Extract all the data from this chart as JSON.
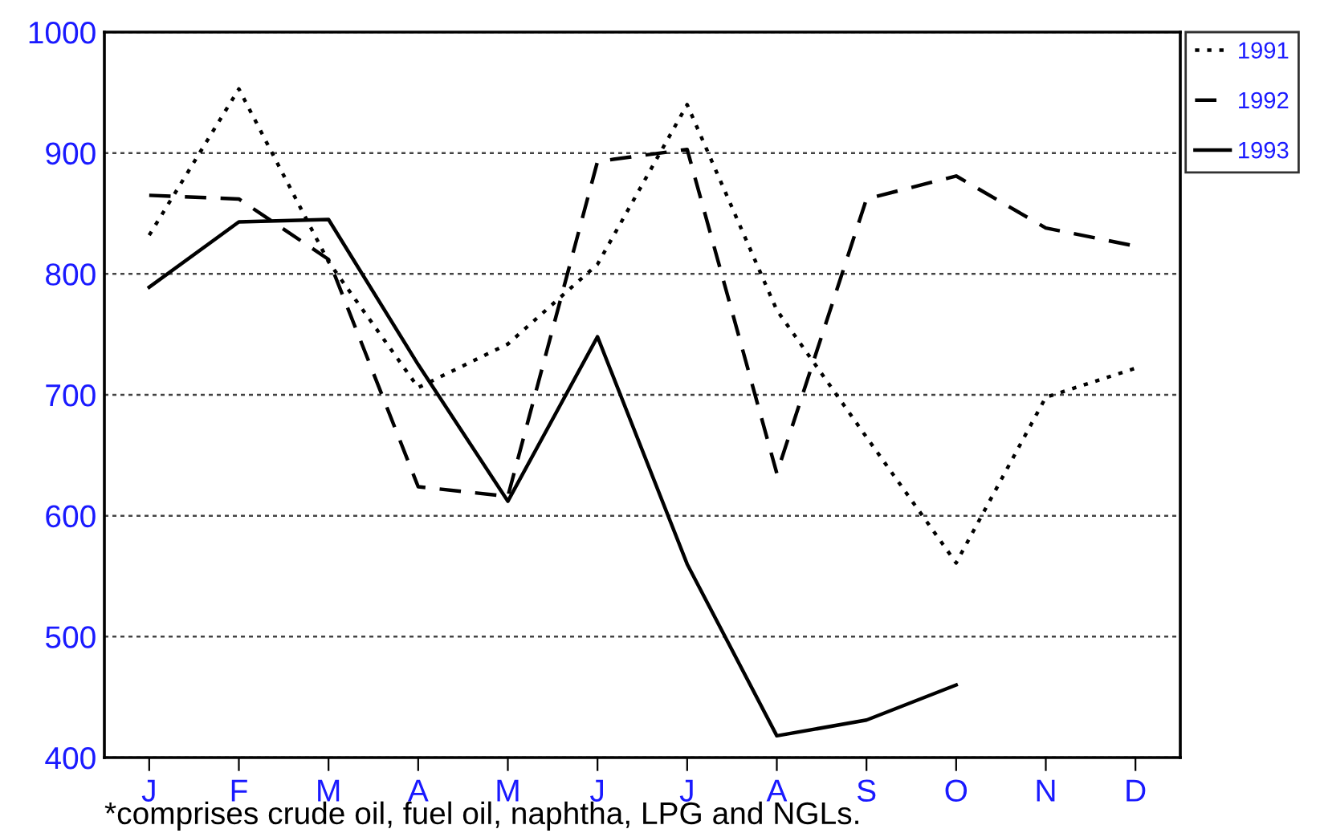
{
  "chart_data": {
    "type": "line",
    "categories": [
      "J",
      "F",
      "M",
      "A",
      "M",
      "J",
      "J",
      "A",
      "S",
      "O",
      "N",
      "D"
    ],
    "series": [
      {
        "name": "1991",
        "color": "#000000",
        "line_style": "dotted",
        "values": [
          832,
          953,
          810,
          706,
          742,
          808,
          940,
          770,
          665,
          561,
          698,
          722
        ]
      },
      {
        "name": "1992",
        "color": "#000000",
        "line_style": "dashed",
        "values": [
          865,
          862,
          812,
          624,
          616,
          893,
          903,
          635,
          862,
          881,
          838,
          823
        ]
      },
      {
        "name": "1993",
        "color": "#000000",
        "line_style": "solid",
        "values": [
          789,
          843,
          845,
          725,
          612,
          748,
          560,
          418,
          431,
          460,
          null,
          null
        ]
      }
    ],
    "ylim": [
      400,
      1000
    ],
    "yticks": [
      400,
      500,
      600,
      700,
      800,
      900,
      1000
    ],
    "grid": "y",
    "legend": "top right",
    "annotations": [
      "*comprises crude oil, fuel oil, naphtha, LPG and NGLs."
    ]
  }
}
